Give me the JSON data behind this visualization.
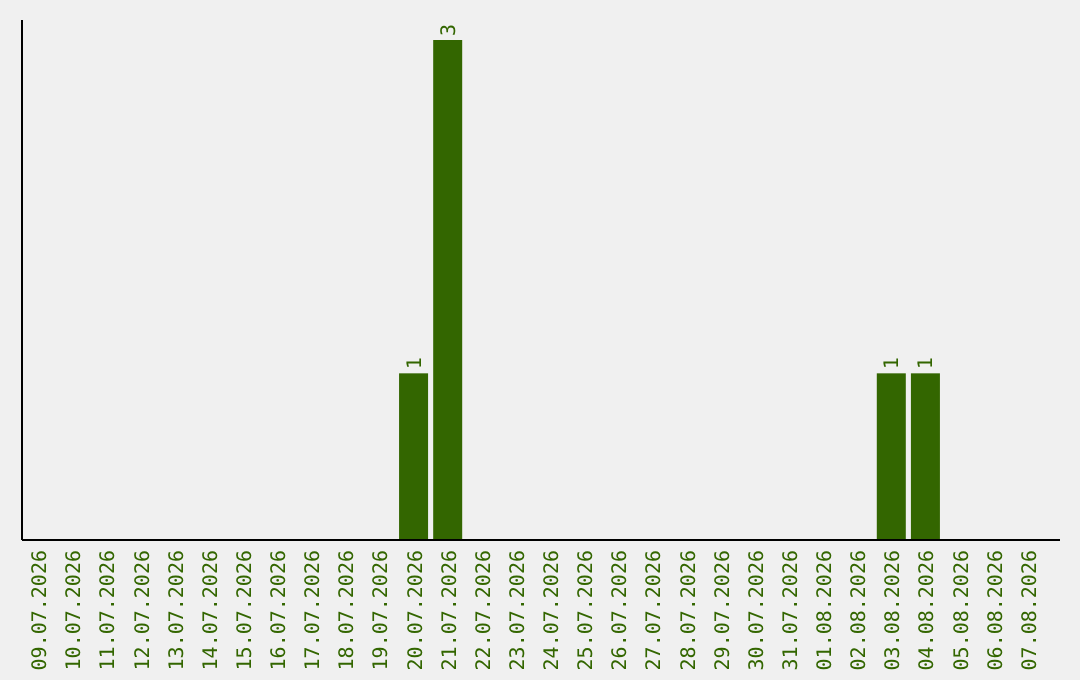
{
  "chart_data": {
    "type": "bar",
    "categories": [
      "09.07.2026",
      "10.07.2026",
      "11.07.2026",
      "12.07.2026",
      "13.07.2026",
      "14.07.2026",
      "15.07.2026",
      "16.07.2026",
      "17.07.2026",
      "18.07.2026",
      "19.07.2026",
      "20.07.2026",
      "21.07.2026",
      "22.07.2026",
      "23.07.2026",
      "24.07.2026",
      "25.07.2026",
      "26.07.2026",
      "27.07.2026",
      "28.07.2026",
      "29.07.2026",
      "30.07.2026",
      "31.07.2026",
      "01.08.2026",
      "02.08.2026",
      "03.08.2026",
      "04.08.2026",
      "05.08.2026",
      "06.08.2026",
      "07.08.2026"
    ],
    "values": [
      0,
      0,
      0,
      0,
      0,
      0,
      0,
      0,
      0,
      0,
      0,
      1,
      3,
      0,
      0,
      0,
      0,
      0,
      0,
      0,
      0,
      0,
      0,
      0,
      0,
      1,
      1,
      0,
      0,
      0
    ],
    "value_labels": [
      null,
      null,
      null,
      null,
      null,
      null,
      null,
      null,
      null,
      null,
      null,
      "1",
      "3",
      null,
      null,
      null,
      null,
      null,
      null,
      null,
      null,
      null,
      null,
      null,
      null,
      "1",
      "1",
      null,
      null,
      null
    ],
    "color": "#336600"
  }
}
